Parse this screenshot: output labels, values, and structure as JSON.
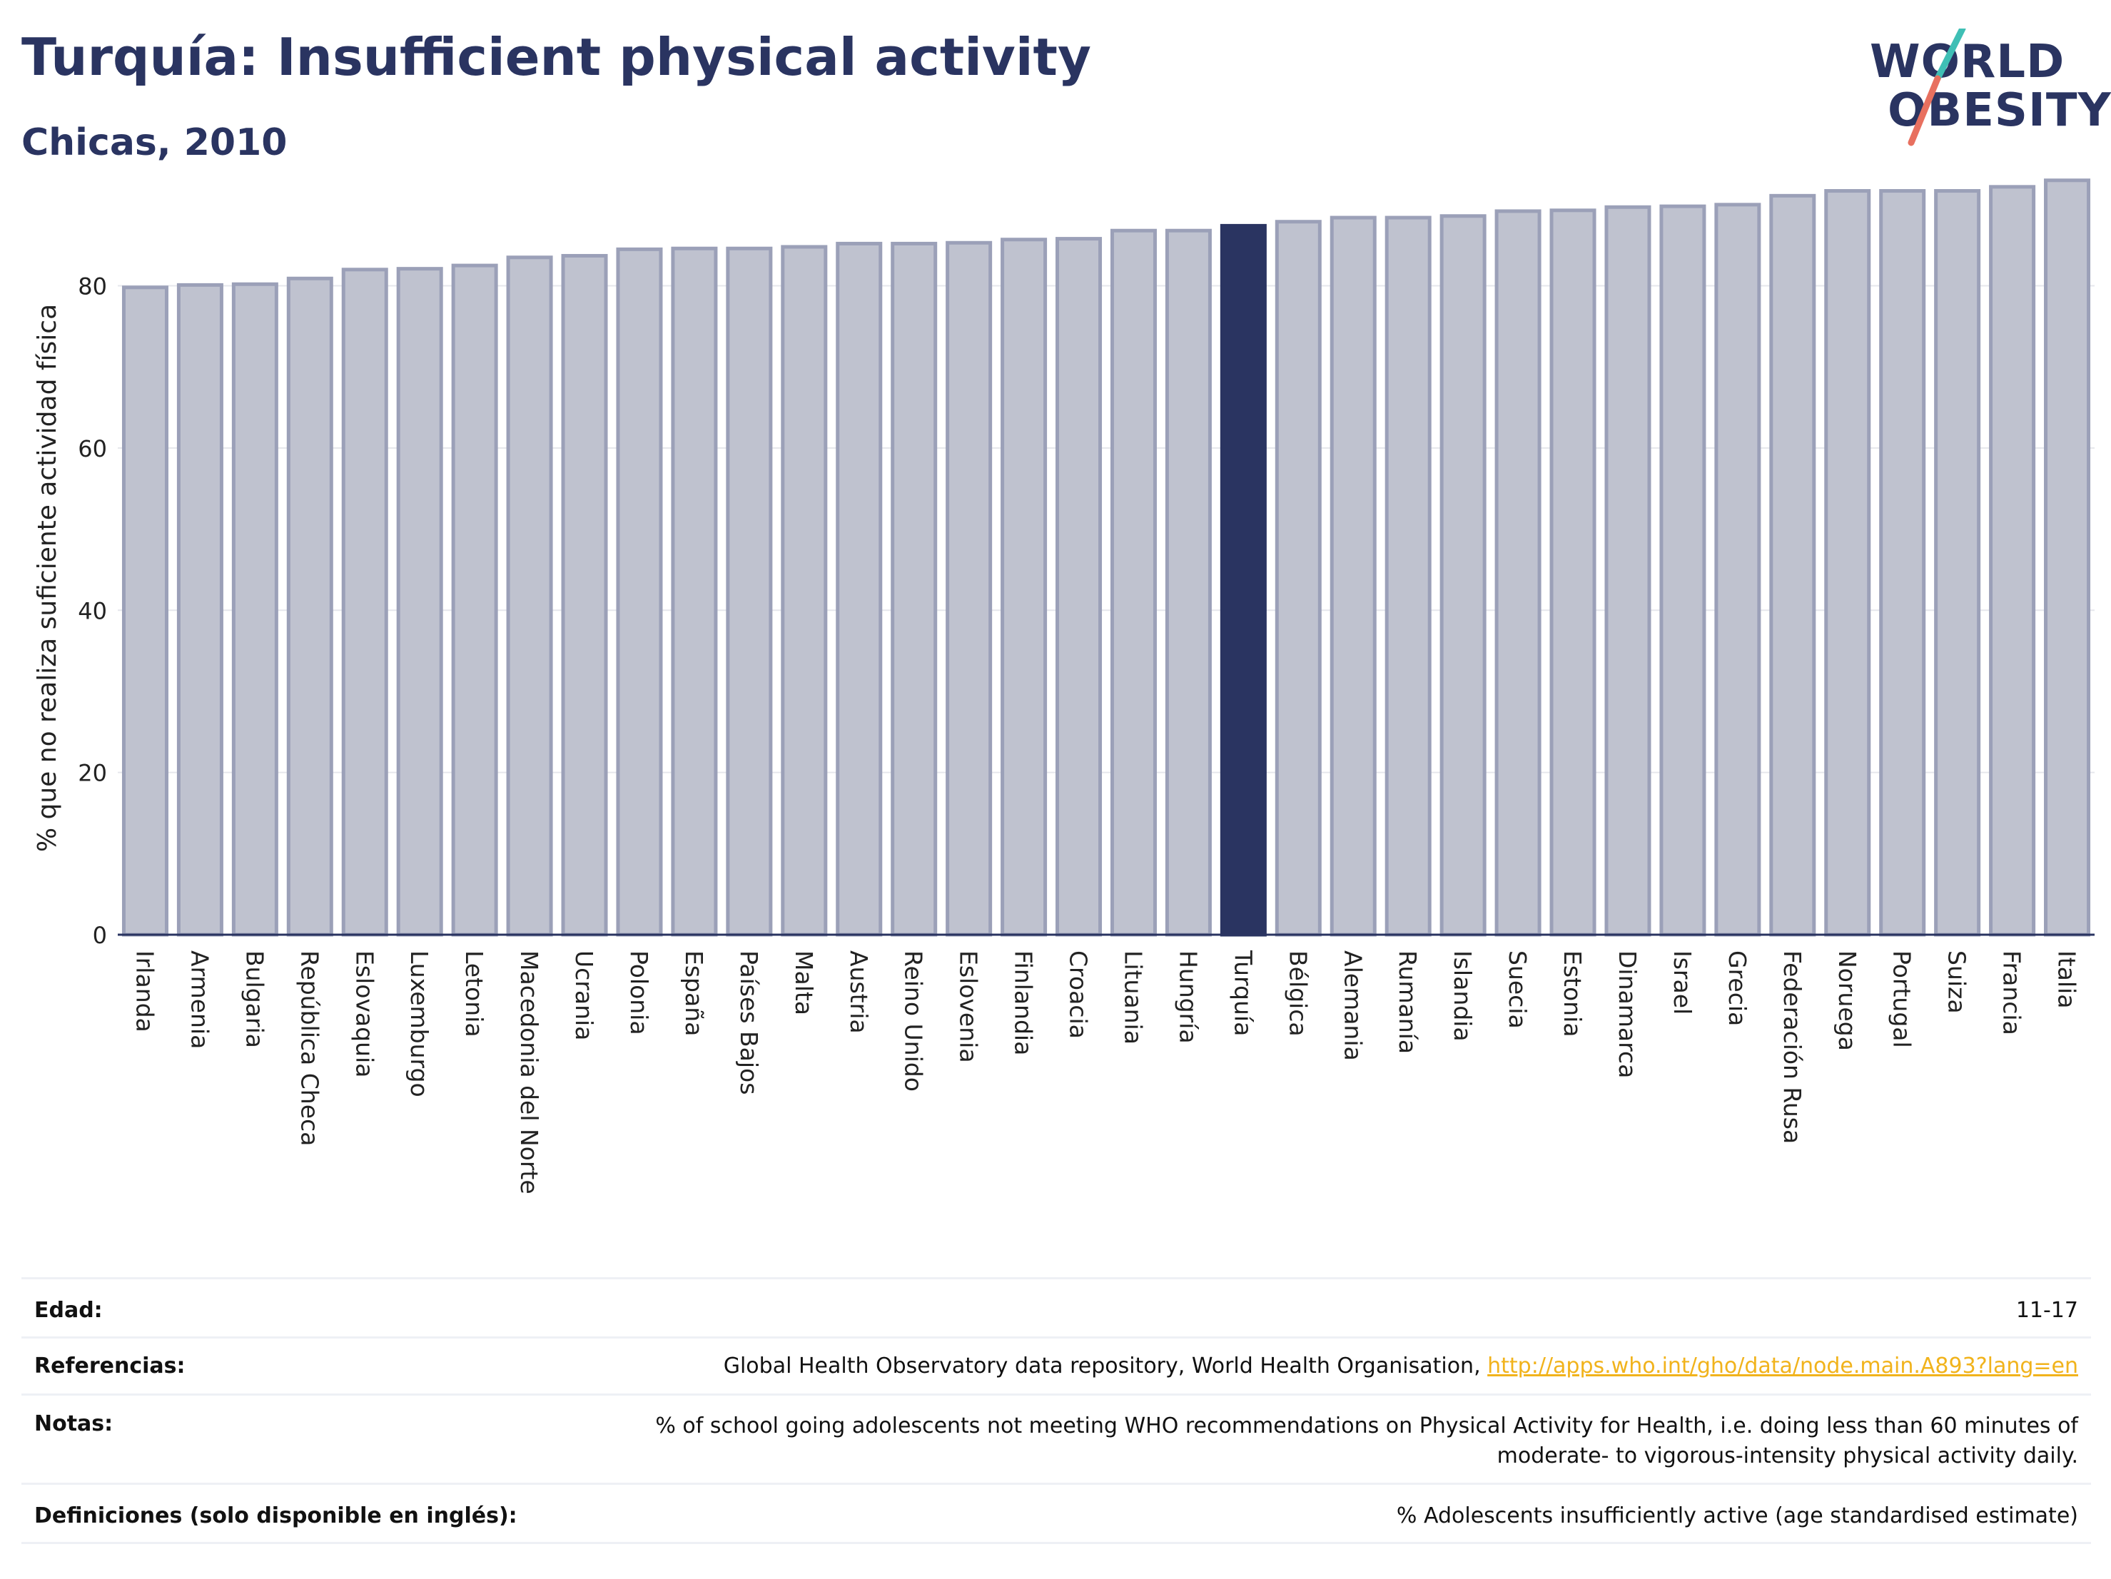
{
  "header": {
    "title": "Turquía: Insufficient physical activity",
    "subtitle": "Chicas, 2010"
  },
  "logo": {
    "line1": "WORLD",
    "line2": "OBESITY",
    "accent_colors": [
      "#3fbfb5",
      "#e8705f"
    ]
  },
  "colors": {
    "bar": "#bfc2cf",
    "bar_edge": "#9ba0b8",
    "highlight": "#2a3461",
    "axis": "#2a3461",
    "grid": "#e6e7ec"
  },
  "chart_data": {
    "type": "bar",
    "categories": [
      "Irlanda",
      "Armenia",
      "Bulgaria",
      "República Checa",
      "Eslovaquia",
      "Luxemburgo",
      "Letonia",
      "Macedonia del Norte",
      "Ucrania",
      "Polonia",
      "España",
      "Países Bajos",
      "Malta",
      "Austria",
      "Reino Unido",
      "Eslovenia",
      "Finlandia",
      "Croacia",
      "Lituania",
      "Hungría",
      "Turquía",
      "Bélgica",
      "Alemania",
      "Rumanía",
      "Islandia",
      "Suecia",
      "Estonia",
      "Dinamarca",
      "Israel",
      "Grecia",
      "Federación Rusa",
      "Noruega",
      "Portugal",
      "Suiza",
      "Francia",
      "Italia"
    ],
    "values": [
      79.8,
      80.1,
      80.2,
      80.9,
      82.0,
      82.1,
      82.5,
      83.5,
      83.7,
      84.5,
      84.6,
      84.6,
      84.8,
      85.2,
      85.2,
      85.3,
      85.7,
      85.8,
      86.8,
      86.8,
      87.4,
      87.9,
      88.4,
      88.4,
      88.6,
      89.2,
      89.3,
      89.7,
      89.8,
      90.0,
      91.1,
      91.7,
      91.7,
      91.7,
      92.2,
      93.0
    ],
    "highlight": "Turquía",
    "ylabel": "% que no realiza suficiente actividad física",
    "xlabel": "",
    "yticks": [
      0,
      20,
      40,
      60,
      80
    ],
    "ylim": [
      0,
      95
    ],
    "grid": true,
    "legend": "none"
  },
  "meta": {
    "age_label": "Edad:",
    "age_value": "11-17",
    "ref_label": "Referencias:",
    "ref_text": "Global Health Observatory data repository, World Health Organisation, ",
    "ref_link": "http://apps.who.int/gho/data/node.main.A893?lang=en",
    "notes_label": "Notas:",
    "notes_line1": "% of school going adolescents not meeting WHO recommendations on Physical Activity for Health, i.e. doing less than 60 minutes of",
    "notes_line2": "moderate- to vigorous-intensity physical activity daily.",
    "def_label": "Definiciones (solo disponible en inglés):",
    "def_value": "% Adolescents insufficiently active (age standardised estimate)"
  }
}
